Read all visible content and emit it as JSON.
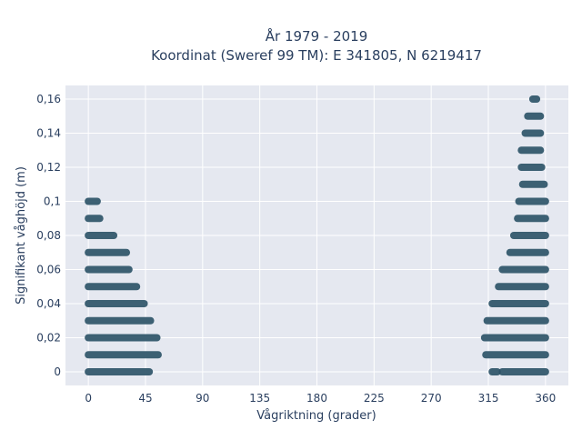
{
  "chart_data": {
    "type": "scatter",
    "title_lines": [
      "År 1979 - 2019",
      "Koordinat (Sweref 99 TM): E 341805, N 6219417"
    ],
    "xlabel": "Vågriktning (grader)",
    "ylabel": "Signifikant våghöjd (m)",
    "xlim": [
      -18,
      378
    ],
    "ylim": [
      -0.008,
      0.168
    ],
    "x_ticks": [
      0,
      45,
      90,
      135,
      180,
      225,
      270,
      315,
      360
    ],
    "x_tick_labels": [
      "0",
      "45",
      "90",
      "135",
      "180",
      "225",
      "270",
      "315",
      "360"
    ],
    "y_ticks": [
      0,
      0.02,
      0.04,
      0.06,
      0.08,
      0.1,
      0.12,
      0.14,
      0.16
    ],
    "y_tick_labels": [
      "0",
      "0,02",
      "0,04",
      "0,06",
      "0,08",
      "0,1",
      "0,12",
      "0,14",
      "0,16"
    ],
    "grid": true,
    "marker_color": "#2e5468",
    "plot_bg": "#e5e8f0",
    "bands": [
      {
        "y": 0,
        "ranges": [
          [
            0,
            48
          ],
          [
            318,
            322
          ],
          [
            326,
            360
          ]
        ]
      },
      {
        "y": 0.01,
        "ranges": [
          [
            0,
            55
          ],
          [
            313,
            360
          ]
        ]
      },
      {
        "y": 0.02,
        "ranges": [
          [
            0,
            54
          ],
          [
            312,
            360
          ]
        ]
      },
      {
        "y": 0.03,
        "ranges": [
          [
            0,
            49
          ],
          [
            314,
            360
          ]
        ]
      },
      {
        "y": 0.04,
        "ranges": [
          [
            0,
            44
          ],
          [
            318,
            360
          ]
        ]
      },
      {
        "y": 0.05,
        "ranges": [
          [
            0,
            38
          ],
          [
            323,
            360
          ]
        ]
      },
      {
        "y": 0.06,
        "ranges": [
          [
            0,
            32
          ],
          [
            326,
            360
          ]
        ]
      },
      {
        "y": 0.07,
        "ranges": [
          [
            0,
            30
          ],
          [
            332,
            360
          ]
        ]
      },
      {
        "y": 0.08,
        "ranges": [
          [
            0,
            20
          ],
          [
            335,
            360
          ]
        ]
      },
      {
        "y": 0.09,
        "ranges": [
          [
            0,
            9
          ],
          [
            338,
            360
          ]
        ]
      },
      {
        "y": 0.1,
        "ranges": [
          [
            0,
            7
          ],
          [
            339,
            360
          ]
        ]
      },
      {
        "y": 0.11,
        "ranges": [
          [
            342,
            359
          ]
        ]
      },
      {
        "y": 0.12,
        "ranges": [
          [
            341,
            357
          ]
        ]
      },
      {
        "y": 0.13,
        "ranges": [
          [
            341,
            356
          ]
        ]
      },
      {
        "y": 0.14,
        "ranges": [
          [
            344,
            356
          ]
        ]
      },
      {
        "y": 0.15,
        "ranges": [
          [
            346,
            356
          ]
        ]
      },
      {
        "y": 0.16,
        "ranges": [
          [
            350,
            353
          ]
        ]
      }
    ]
  }
}
